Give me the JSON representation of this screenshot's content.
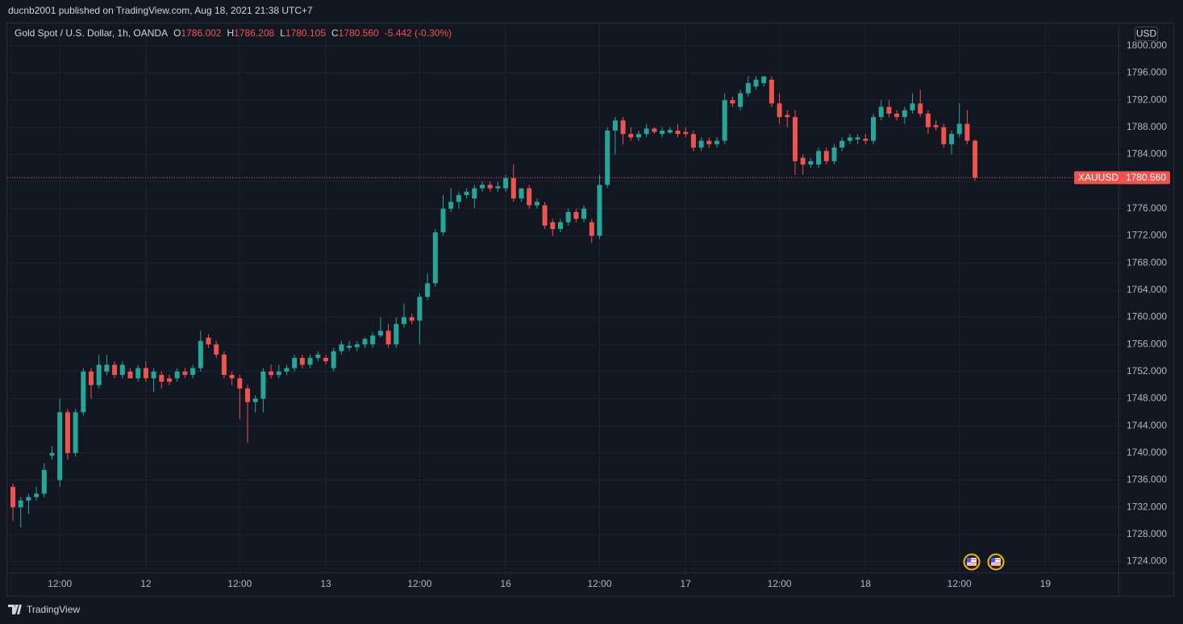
{
  "header": {
    "publisher": "ducnb2001 published on TradingView.com, Aug 18, 2021 21:38 UTC+7"
  },
  "chart_data": {
    "type": "candlestick",
    "title": "Gold Spot / U.S. Dollar, 1h, OANDA",
    "ohlc_legend": [
      {
        "key": "O",
        "value": "1786.002"
      },
      {
        "key": "H",
        "value": "1786.208"
      },
      {
        "key": "L",
        "value": "1780.105"
      },
      {
        "key": "C",
        "value": "1780.560"
      }
    ],
    "change": "-5.442 (-0.30%)",
    "categories": [
      null,
      null,
      null,
      null,
      null,
      null,
      "12:00",
      null,
      null,
      null,
      null,
      null,
      null,
      null,
      null,
      null,
      null,
      "12",
      null,
      null,
      null,
      null,
      null,
      null,
      null,
      null,
      null,
      null,
      null,
      "12:00",
      null,
      null,
      null,
      null,
      null,
      null,
      null,
      null,
      null,
      null,
      "13",
      null,
      null,
      null,
      null,
      null,
      null,
      null,
      null,
      null,
      null,
      null,
      "12:00",
      null,
      null,
      null,
      null,
      null,
      null,
      null,
      null,
      null,
      null,
      "16",
      null,
      null,
      null,
      null,
      null,
      null,
      null,
      null,
      null,
      null,
      null,
      "12:00",
      null,
      null,
      null,
      null,
      null,
      null,
      null,
      null,
      null,
      null,
      "17",
      null,
      null,
      null,
      null,
      null,
      null,
      null,
      null,
      null,
      null,
      null,
      "12:00",
      null,
      null,
      null,
      null,
      null,
      null,
      null,
      null,
      null,
      null,
      "18",
      null,
      null,
      null,
      null,
      null,
      null,
      null,
      null,
      null,
      null,
      null,
      "12:00",
      null,
      null,
      null,
      null,
      null,
      null,
      null,
      null,
      null,
      null,
      "19"
    ],
    "open": [
      1735,
      1732,
      1733,
      1733.5,
      1734,
      1739.6,
      1736,
      1746,
      1740,
      1746,
      1752,
      1750,
      1752,
      1753,
      1751.5,
      1752,
      1751,
      1752.5,
      1751,
      1751.5,
      1751,
      1751,
      1752,
      1751.5,
      1752.5,
      1757,
      1756,
      1754.5,
      1751.5,
      1751,
      1749.5,
      1747.5,
      1748,
      1752,
      1751.5,
      1752,
      1752.5,
      1754,
      1753,
      1754,
      1754,
      1752.5,
      1755,
      1755.5,
      1755.6,
      1756,
      1756,
      1757.3,
      1758,
      1756,
      1759,
      1760,
      1759.5,
      1763,
      1765,
      1772.5,
      1776,
      1777,
      1778,
      1777.5,
      1779,
      1779.5,
      1779,
      1779,
      1780.5,
      1777.5,
      1779,
      1776.5,
      1776.5,
      1774,
      1773,
      1774,
      1775.5,
      1774.5,
      1774,
      1772,
      1779.5,
      1787.5,
      1789,
      1787,
      1786.5,
      1787,
      1787.8,
      1787,
      1787.2,
      1787.5,
      1787.3,
      1787,
      1785,
      1786,
      1785.5,
      1786,
      1792,
      1791,
      1793,
      1794,
      1794.5,
      1795,
      1791.5,
      1789.8,
      1789.5,
      1783.5,
      1782.5,
      1782.5,
      1784.5,
      1783,
      1785,
      1786,
      1786.2,
      1786.3,
      1786,
      1789.5,
      1791,
      1790,
      1789.5,
      1790.5,
      1791.5,
      1790,
      1788.3,
      1788,
      1785.5,
      1787,
      1788.5,
      1786.002,
      null,
      null,
      null,
      null,
      null,
      null,
      null,
      null,
      null
    ],
    "high": [
      1735.5,
      1733.5,
      1734,
      1735,
      1738.5,
      1741,
      1748,
      1746.5,
      1746.5,
      1752.5,
      1752.5,
      1754.5,
      1754.5,
      1753.5,
      1753.5,
      1752.5,
      1753,
      1753.5,
      1752.5,
      1752,
      1751.5,
      1752.5,
      1752.5,
      1753,
      1758,
      1757.5,
      1756.5,
      1755,
      1752,
      1751.5,
      1750,
      1748.5,
      1752.5,
      1753,
      1753,
      1753,
      1754.5,
      1754.5,
      1754.5,
      1755,
      1754.5,
      1755.5,
      1756.5,
      1756.5,
      1756.5,
      1757,
      1757.8,
      1760,
      1759,
      1760,
      1762,
      1760.5,
      1763.5,
      1766.5,
      1773,
      1778,
      1779,
      1778.5,
      1779,
      1779.5,
      1780,
      1780,
      1780,
      1781,
      1782.5,
      1779,
      1779.5,
      1777.5,
      1777,
      1774.5,
      1774.5,
      1776,
      1776,
      1776.5,
      1774.5,
      1781,
      1788,
      1789.5,
      1789.5,
      1788,
      1787.5,
      1788.5,
      1788,
      1788,
      1788,
      1788.5,
      1788,
      1787.5,
      1786.5,
      1786.5,
      1786.5,
      1793,
      1792.5,
      1793.5,
      1795.5,
      1795.5,
      1795.5,
      1795.5,
      1793,
      1790.5,
      1790.5,
      1784,
      1783.5,
      1785,
      1785,
      1785.5,
      1786.5,
      1787,
      1787,
      1787,
      1790,
      1792,
      1792,
      1790.5,
      1791,
      1793,
      1793.5,
      1790.5,
      1789,
      1788.5,
      1787.5,
      1791.5,
      1790.5,
      1786.208,
      null,
      null,
      null,
      null,
      null,
      null,
      null,
      null,
      null
    ],
    "low": [
      1730,
      1729,
      1731,
      1733,
      1733.5,
      1739,
      1735,
      1739,
      1739.5,
      1745.5,
      1748,
      1749.5,
      1751.5,
      1751,
      1751,
      1751,
      1750.5,
      1750.5,
      1749,
      1749.5,
      1750,
      1750.5,
      1751,
      1751,
      1752,
      1755.5,
      1754,
      1751,
      1750,
      1745,
      1741.5,
      1746,
      1746,
      1751,
      1751,
      1751.5,
      1752,
      1752.5,
      1752.5,
      1753.5,
      1753,
      1752,
      1754.5,
      1755,
      1755,
      1755.5,
      1755.5,
      1757,
      1755.5,
      1755.5,
      1758.5,
      1759,
      1756,
      1762.5,
      1764.5,
      1772,
      1775.5,
      1776,
      1777.5,
      1776,
      1778.5,
      1778.5,
      1778.5,
      1778.5,
      1777,
      1777,
      1776,
      1776,
      1773,
      1772,
      1772.5,
      1773.5,
      1774,
      1774,
      1771,
      1771.5,
      1779,
      1784,
      1785.5,
      1786,
      1786,
      1786.5,
      1787,
      1786.5,
      1787,
      1786.5,
      1786.5,
      1784.5,
      1784.5,
      1785,
      1785,
      1785.5,
      1791,
      1790.5,
      1792.5,
      1793.5,
      1794,
      1791,
      1788.5,
      1788,
      1781,
      1781,
      1782,
      1782,
      1782.5,
      1782.5,
      1784.5,
      1785.5,
      1785.5,
      1785.5,
      1785.5,
      1789,
      1789.5,
      1789,
      1788.5,
      1790,
      1789.5,
      1787,
      1787.5,
      1785,
      1784,
      1786.5,
      1785.5,
      1780.105,
      null,
      null,
      null,
      null,
      null,
      null,
      null,
      null,
      null
    ],
    "close": [
      1732,
      1733,
      1733.5,
      1734,
      1737.5,
      1740,
      1746,
      1740,
      1746,
      1752,
      1750,
      1753,
      1753,
      1751.5,
      1753,
      1751,
      1752.5,
      1751,
      1752,
      1750.5,
      1750.5,
      1752,
      1751.5,
      1752.5,
      1756.5,
      1756,
      1754.5,
      1751.5,
      1751,
      1749.5,
      1747.5,
      1748,
      1752,
      1751.5,
      1752,
      1752.5,
      1754,
      1753,
      1754,
      1754.5,
      1753.5,
      1755,
      1756,
      1755.8,
      1756,
      1756.8,
      1757.3,
      1758,
      1756,
      1759,
      1760,
      1759.5,
      1763,
      1765,
      1772.5,
      1776,
      1777,
      1778,
      1778.5,
      1779,
      1779.5,
      1779,
      1779.3,
      1780.5,
      1777.5,
      1779,
      1776.5,
      1777,
      1773.5,
      1773,
      1774,
      1775.5,
      1774.5,
      1776,
      1772,
      1779.5,
      1787.5,
      1789,
      1787,
      1786.5,
      1787,
      1787.8,
      1787.3,
      1787.5,
      1787.6,
      1787,
      1787,
      1785,
      1786,
      1785.5,
      1786,
      1792,
      1791.5,
      1793,
      1794.5,
      1795,
      1795.5,
      1791.5,
      1789.5,
      1789.5,
      1783,
      1782.5,
      1783,
      1784.5,
      1783,
      1785,
      1786,
      1786.5,
      1786.5,
      1786,
      1789.5,
      1791,
      1790,
      1789.5,
      1790.5,
      1791.5,
      1790,
      1788,
      1788,
      1785.5,
      1787,
      1788.5,
      1786,
      1780.56,
      null,
      null,
      null,
      null,
      null,
      null,
      null,
      null,
      null
    ],
    "up_color": "#26a69a",
    "down_color": "#ef5350",
    "ylim": [
      1722.4,
      1803.3
    ],
    "yticks": [
      {
        "value": 1724,
        "label": "1724.000"
      },
      {
        "value": 1728,
        "label": "1728.000"
      },
      {
        "value": 1732,
        "label": "1732.000"
      },
      {
        "value": 1736,
        "label": "1736.000"
      },
      {
        "value": 1740,
        "label": "1740.000"
      },
      {
        "value": 1744,
        "label": "1744.000"
      },
      {
        "value": 1748,
        "label": "1748.000"
      },
      {
        "value": 1752,
        "label": "1752.000"
      },
      {
        "value": 1756,
        "label": "1756.000"
      },
      {
        "value": 1760,
        "label": "1760.000"
      },
      {
        "value": 1764,
        "label": "1764.000"
      },
      {
        "value": 1768,
        "label": "1768.000"
      },
      {
        "value": 1772,
        "label": "1772.000"
      },
      {
        "value": 1776,
        "label": "1776.000"
      },
      {
        "value": 1780,
        "label": "1780.000"
      },
      {
        "value": 1784,
        "label": "1784.000"
      },
      {
        "value": 1788,
        "label": "1788.000"
      },
      {
        "value": 1792,
        "label": "1792.000"
      },
      {
        "value": 1796,
        "label": "1796.000"
      },
      {
        "value": 1800,
        "label": "1800.000"
      }
    ],
    "grid": true,
    "currency": "USD",
    "last_price": {
      "symbol": "XAUUSD",
      "value": 1780.56,
      "label": "1780.560"
    }
  },
  "footer": {
    "brand": "TradingView"
  }
}
